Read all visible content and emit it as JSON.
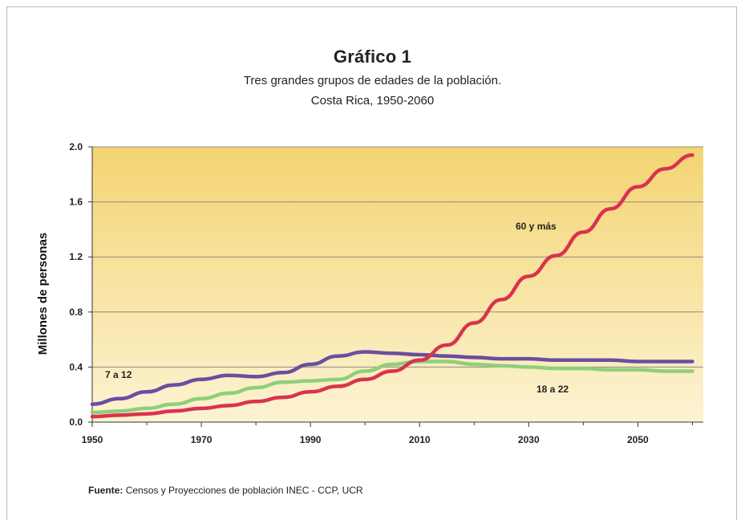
{
  "chart_data": {
    "type": "line",
    "title": "Gráfico 1",
    "subtitle": "Tres grandes grupos de edades de la población.",
    "subtitle2": "Costa Rica, 1950-2060",
    "xlabel": "",
    "ylabel": "Millones de personas",
    "xlim": [
      1950,
      2062
    ],
    "ylim": [
      0,
      2.0
    ],
    "xticks": [
      "1950",
      "1970",
      "1990",
      "2010",
      "2030",
      "2050"
    ],
    "yticks": [
      "0.0",
      "0.4",
      "0.8",
      "1.2",
      "1.6",
      "2.0"
    ],
    "grid": true,
    "background": "#f2d77f",
    "series": [
      {
        "name": "7 a 12",
        "color": "#6a4ea0",
        "x": [
          1950,
          1955,
          1960,
          1965,
          1970,
          1975,
          1980,
          1985,
          1990,
          1995,
          2000,
          2005,
          2010,
          2015,
          2020,
          2025,
          2030,
          2035,
          2040,
          2045,
          2050,
          2055,
          2060
        ],
        "y": [
          0.13,
          0.17,
          0.22,
          0.27,
          0.31,
          0.34,
          0.33,
          0.36,
          0.42,
          0.48,
          0.51,
          0.5,
          0.49,
          0.48,
          0.47,
          0.46,
          0.46,
          0.45,
          0.45,
          0.45,
          0.44,
          0.44,
          0.44
        ]
      },
      {
        "name": "18 a 22",
        "color": "#8fcf7a",
        "x": [
          1950,
          1955,
          1960,
          1965,
          1970,
          1975,
          1980,
          1985,
          1990,
          1995,
          2000,
          2005,
          2010,
          2015,
          2020,
          2025,
          2030,
          2035,
          2040,
          2045,
          2050,
          2055,
          2060
        ],
        "y": [
          0.07,
          0.08,
          0.1,
          0.13,
          0.17,
          0.21,
          0.25,
          0.29,
          0.3,
          0.31,
          0.37,
          0.42,
          0.44,
          0.44,
          0.42,
          0.41,
          0.4,
          0.39,
          0.39,
          0.38,
          0.38,
          0.37,
          0.37
        ]
      },
      {
        "name": "60 y más",
        "color": "#d9334e",
        "x": [
          1950,
          1955,
          1960,
          1965,
          1970,
          1975,
          1980,
          1985,
          1990,
          1995,
          2000,
          2005,
          2010,
          2015,
          2020,
          2025,
          2030,
          2035,
          2040,
          2045,
          2050,
          2055,
          2060
        ],
        "y": [
          0.04,
          0.05,
          0.06,
          0.08,
          0.1,
          0.12,
          0.15,
          0.18,
          0.22,
          0.26,
          0.31,
          0.37,
          0.45,
          0.56,
          0.72,
          0.89,
          1.06,
          1.21,
          1.38,
          1.55,
          1.71,
          1.84,
          1.94
        ]
      }
    ]
  },
  "source": {
    "label": "Fuente:",
    "text": "Censos y Proyecciones de población INEC - CCP, UCR"
  }
}
